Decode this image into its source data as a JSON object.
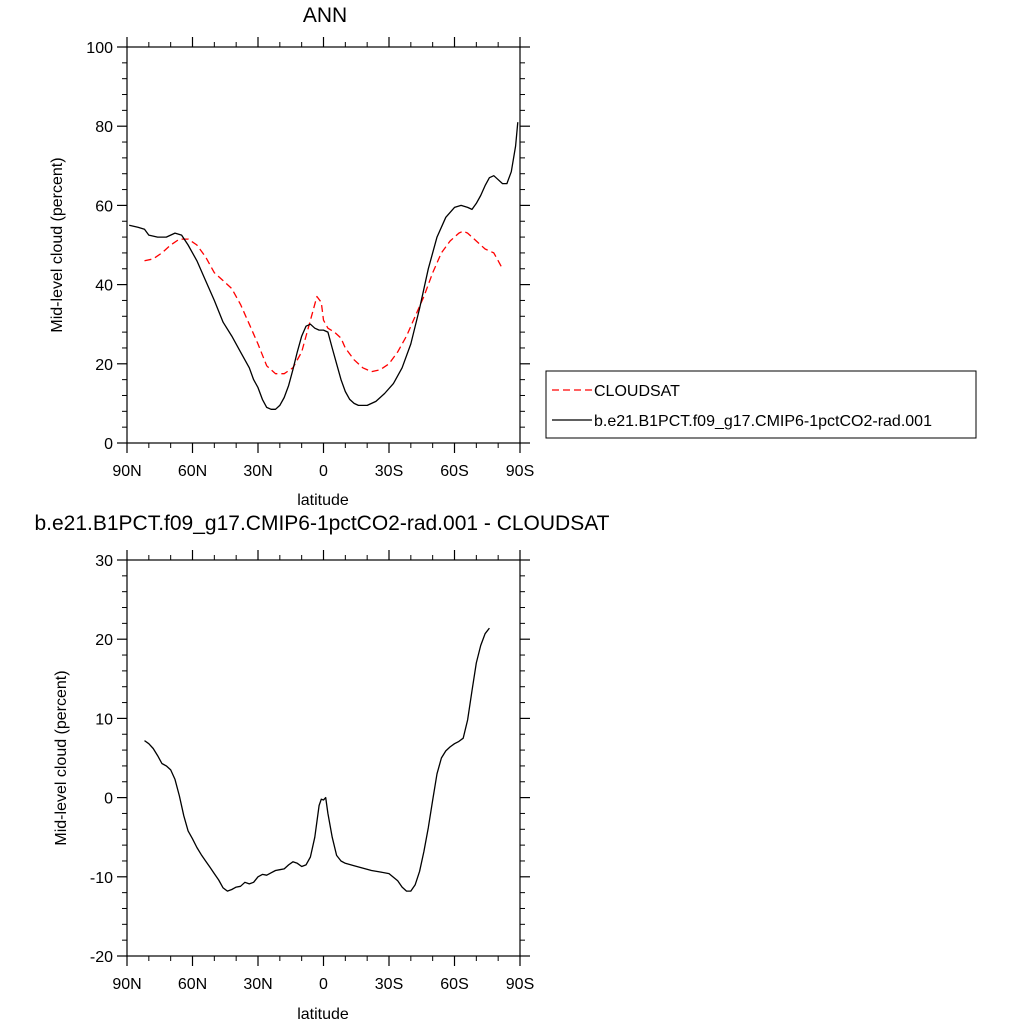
{
  "chart_data": [
    {
      "type": "line",
      "title": "ANN",
      "xlabel": "latitude",
      "ylabel": "Mid-level cloud (percent)",
      "xlim": [
        90,
        -90
      ],
      "ylim": [
        0,
        100
      ],
      "xticks": [
        {
          "value": 90,
          "label": "90N"
        },
        {
          "value": 60,
          "label": "60N"
        },
        {
          "value": 30,
          "label": "30N"
        },
        {
          "value": 0,
          "label": "0"
        },
        {
          "value": -30,
          "label": "30S"
        },
        {
          "value": -60,
          "label": "60S"
        },
        {
          "value": -90,
          "label": "90S"
        }
      ],
      "yticks": [
        {
          "value": 0,
          "label": "0"
        },
        {
          "value": 20,
          "label": "20"
        },
        {
          "value": 40,
          "label": "40"
        },
        {
          "value": 60,
          "label": "60"
        },
        {
          "value": 80,
          "label": "80"
        },
        {
          "value": 100,
          "label": "100"
        }
      ],
      "legend_position": "right",
      "series": [
        {
          "name": "CLOUDSAT",
          "color": "#ff0000",
          "style": "dashed",
          "points": [
            [
              82,
              46
            ],
            [
              78,
              46.5
            ],
            [
              74,
              48
            ],
            [
              70,
              50
            ],
            [
              66,
              51.5
            ],
            [
              62,
              51.5
            ],
            [
              58,
              50
            ],
            [
              54,
              47
            ],
            [
              50,
              43
            ],
            [
              46,
              41
            ],
            [
              42,
              39
            ],
            [
              38,
              35
            ],
            [
              34,
              30
            ],
            [
              30,
              25
            ],
            [
              26,
              19.5
            ],
            [
              22,
              17.5
            ],
            [
              18,
              17.5
            ],
            [
              14,
              19
            ],
            [
              10,
              23
            ],
            [
              7,
              29
            ],
            [
              5,
              33
            ],
            [
              3,
              37
            ],
            [
              1,
              35.5
            ],
            [
              0,
              31
            ],
            [
              -2,
              29
            ],
            [
              -5,
              28
            ],
            [
              -8,
              26.5
            ],
            [
              -10,
              24
            ],
            [
              -14,
              21
            ],
            [
              -18,
              19
            ],
            [
              -22,
              18
            ],
            [
              -26,
              18.5
            ],
            [
              -30,
              20
            ],
            [
              -34,
              23
            ],
            [
              -38,
              27
            ],
            [
              -42,
              32
            ],
            [
              -46,
              37
            ],
            [
              -50,
              43
            ],
            [
              -54,
              48
            ],
            [
              -58,
              51
            ],
            [
              -62,
              53
            ],
            [
              -64,
              53.5
            ],
            [
              -66,
              53
            ],
            [
              -70,
              51
            ],
            [
              -74,
              49
            ],
            [
              -78,
              48
            ],
            [
              -80,
              46
            ],
            [
              -82,
              44
            ]
          ]
        },
        {
          "name": "b.e21.B1PCT.f09_g17.CMIP6-1pctCO2-rad.001",
          "color": "#000000",
          "style": "solid",
          "points": [
            [
              89,
              55
            ],
            [
              85,
              54.5
            ],
            [
              82,
              54
            ],
            [
              80,
              52.5
            ],
            [
              76,
              52
            ],
            [
              72,
              52
            ],
            [
              68,
              53
            ],
            [
              65,
              52.5
            ],
            [
              62,
              50
            ],
            [
              58,
              46
            ],
            [
              54,
              41
            ],
            [
              50,
              36
            ],
            [
              46,
              30.5
            ],
            [
              42,
              27
            ],
            [
              38,
              23
            ],
            [
              34,
              19
            ],
            [
              32,
              16
            ],
            [
              30,
              14
            ],
            [
              28,
              11
            ],
            [
              26,
              9
            ],
            [
              24,
              8.5
            ],
            [
              22,
              8.5
            ],
            [
              20,
              9.5
            ],
            [
              18,
              11.5
            ],
            [
              16,
              14.5
            ],
            [
              14,
              18.5
            ],
            [
              12,
              23
            ],
            [
              10,
              27
            ],
            [
              8,
              29.5
            ],
            [
              6,
              30
            ],
            [
              4,
              29
            ],
            [
              2,
              28.5
            ],
            [
              0,
              28.5
            ],
            [
              -2,
              28
            ],
            [
              -4,
              24
            ],
            [
              -6,
              20
            ],
            [
              -8,
              16
            ],
            [
              -10,
              13
            ],
            [
              -12,
              11
            ],
            [
              -14,
              10
            ],
            [
              -16,
              9.5
            ],
            [
              -20,
              9.5
            ],
            [
              -24,
              10.5
            ],
            [
              -28,
              12.5
            ],
            [
              -32,
              15
            ],
            [
              -36,
              19
            ],
            [
              -40,
              25
            ],
            [
              -44,
              34
            ],
            [
              -48,
              44
            ],
            [
              -52,
              52
            ],
            [
              -56,
              57
            ],
            [
              -60,
              59.5
            ],
            [
              -63,
              60
            ],
            [
              -66,
              59.5
            ],
            [
              -68,
              59
            ],
            [
              -70,
              60.5
            ],
            [
              -72,
              62.5
            ],
            [
              -74,
              65
            ],
            [
              -76,
              67
            ],
            [
              -78,
              67.5
            ],
            [
              -80,
              66.5
            ],
            [
              -82,
              65.5
            ],
            [
              -84,
              65.5
            ],
            [
              -86,
              68.5
            ],
            [
              -88,
              75
            ],
            [
              -89,
              81
            ]
          ]
        }
      ]
    },
    {
      "type": "line",
      "title": "b.e21.B1PCT.f09_g17.CMIP6-1pctCO2-rad.001 - CLOUDSAT",
      "xlabel": "latitude",
      "ylabel": "Mid-level cloud (percent)",
      "xlim": [
        90,
        -90
      ],
      "ylim": [
        -20,
        30
      ],
      "xticks": [
        {
          "value": 90,
          "label": "90N"
        },
        {
          "value": 60,
          "label": "60N"
        },
        {
          "value": 30,
          "label": "30N"
        },
        {
          "value": 0,
          "label": "0"
        },
        {
          "value": -30,
          "label": "30S"
        },
        {
          "value": -60,
          "label": "60S"
        },
        {
          "value": -90,
          "label": "90S"
        }
      ],
      "yticks": [
        {
          "value": -20,
          "label": "-20"
        },
        {
          "value": -10,
          "label": "-10"
        },
        {
          "value": 0,
          "label": "0"
        },
        {
          "value": 10,
          "label": "10"
        },
        {
          "value": 20,
          "label": "20"
        },
        {
          "value": 30,
          "label": "30"
        }
      ],
      "series": [
        {
          "name": "",
          "color": "#000000",
          "style": "solid",
          "points": [
            [
              82,
              7.2
            ],
            [
              80,
              6.8
            ],
            [
              78,
              6.2
            ],
            [
              76,
              5.3
            ],
            [
              74,
              4.3
            ],
            [
              72,
              4
            ],
            [
              70,
              3.5
            ],
            [
              68,
              2.3
            ],
            [
              66,
              0.2
            ],
            [
              64,
              -2.3
            ],
            [
              62,
              -4.2
            ],
            [
              60,
              -5.2
            ],
            [
              58,
              -6.3
            ],
            [
              56,
              -7.2
            ],
            [
              54,
              -8
            ],
            [
              52,
              -8.8
            ],
            [
              50,
              -9.6
            ],
            [
              48,
              -10.4
            ],
            [
              46,
              -11.4
            ],
            [
              44,
              -11.8
            ],
            [
              42,
              -11.6
            ],
            [
              40,
              -11.3
            ],
            [
              38,
              -11.2
            ],
            [
              36,
              -10.7
            ],
            [
              34,
              -10.9
            ],
            [
              32,
              -10.7
            ],
            [
              30,
              -10
            ],
            [
              28,
              -9.7
            ],
            [
              26,
              -9.8
            ],
            [
              24,
              -9.5
            ],
            [
              22,
              -9.2
            ],
            [
              20,
              -9.1
            ],
            [
              18,
              -9
            ],
            [
              16,
              -8.5
            ],
            [
              14,
              -8.1
            ],
            [
              12,
              -8.3
            ],
            [
              10,
              -8.7
            ],
            [
              8,
              -8.5
            ],
            [
              6,
              -7.5
            ],
            [
              4,
              -5
            ],
            [
              2,
              -1
            ],
            [
              1,
              -0.2
            ],
            [
              0,
              -0.3
            ],
            [
              -1,
              0
            ],
            [
              -2,
              -2
            ],
            [
              -4,
              -5
            ],
            [
              -6,
              -7.3
            ],
            [
              -8,
              -8
            ],
            [
              -10,
              -8.3
            ],
            [
              -14,
              -8.6
            ],
            [
              -18,
              -8.9
            ],
            [
              -22,
              -9.2
            ],
            [
              -26,
              -9.4
            ],
            [
              -30,
              -9.6
            ],
            [
              -34,
              -10.5
            ],
            [
              -36,
              -11.3
            ],
            [
              -38,
              -11.8
            ],
            [
              -40,
              -11.8
            ],
            [
              -42,
              -11
            ],
            [
              -44,
              -9.3
            ],
            [
              -46,
              -6.8
            ],
            [
              -48,
              -3.8
            ],
            [
              -50,
              -0.3
            ],
            [
              -52,
              3
            ],
            [
              -54,
              5
            ],
            [
              -56,
              5.9
            ],
            [
              -58,
              6.4
            ],
            [
              -60,
              6.8
            ],
            [
              -62,
              7.1
            ],
            [
              -64,
              7.5
            ],
            [
              -66,
              9.8
            ],
            [
              -68,
              13.5
            ],
            [
              -70,
              17
            ],
            [
              -72,
              19.2
            ],
            [
              -74,
              20.7
            ],
            [
              -76,
              21.4
            ]
          ]
        }
      ]
    }
  ]
}
